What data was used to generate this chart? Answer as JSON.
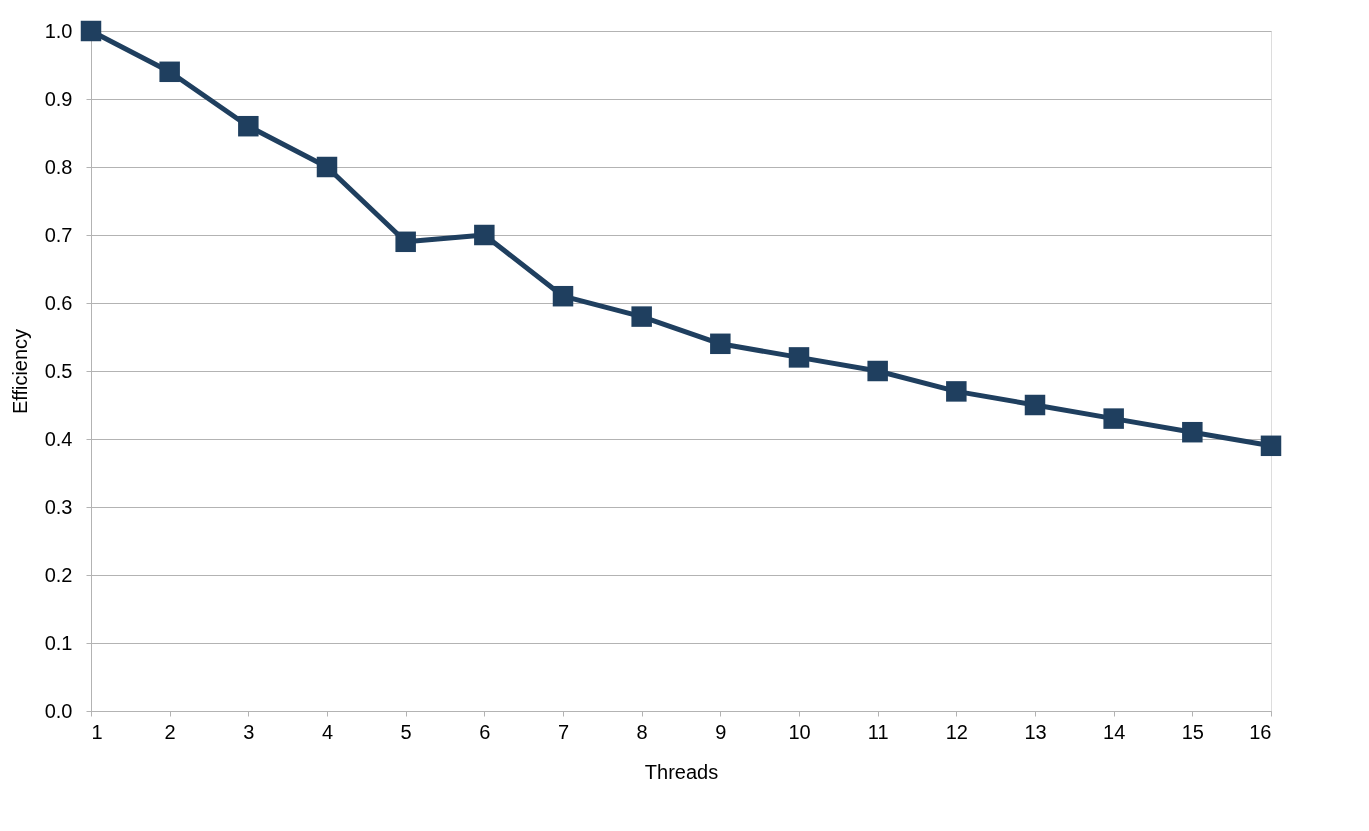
{
  "chart_data": {
    "type": "line",
    "xlabel": "Threads",
    "ylabel": "Efficiency",
    "x": [
      1,
      2,
      3,
      4,
      5,
      6,
      7,
      8,
      9,
      10,
      11,
      12,
      13,
      14,
      15,
      16
    ],
    "series": [
      {
        "color": "#1f3f5f",
        "values": [
          1.0,
          0.94,
          0.86,
          0.8,
          0.69,
          0.7,
          0.61,
          0.58,
          0.54,
          0.52,
          0.5,
          0.47,
          0.45,
          0.43,
          0.41,
          0.39
        ]
      }
    ],
    "xlim": [
      1,
      16
    ],
    "xticks": [
      1,
      2,
      3,
      4,
      5,
      6,
      7,
      8,
      9,
      10,
      11,
      12,
      13,
      14,
      15,
      16
    ],
    "ylim": [
      0,
      1
    ],
    "yticks": [
      {
        "value": 0,
        "label": "0.0"
      },
      {
        "value": 0.1,
        "label": "0.1"
      },
      {
        "value": 0.2,
        "label": "0.2"
      },
      {
        "value": 0.3,
        "label": "0.3"
      },
      {
        "value": 0.4,
        "label": "0.4"
      },
      {
        "value": 0.5,
        "label": "0.5"
      },
      {
        "value": 0.6,
        "label": "0.6"
      },
      {
        "value": 0.7,
        "label": "0.7"
      },
      {
        "value": 0.8,
        "label": "0.8"
      },
      {
        "value": 0.9,
        "label": "0.9"
      },
      {
        "value": 1,
        "label": "1.0"
      }
    ],
    "grid": "y",
    "marker": "square",
    "line_style": "solid"
  }
}
